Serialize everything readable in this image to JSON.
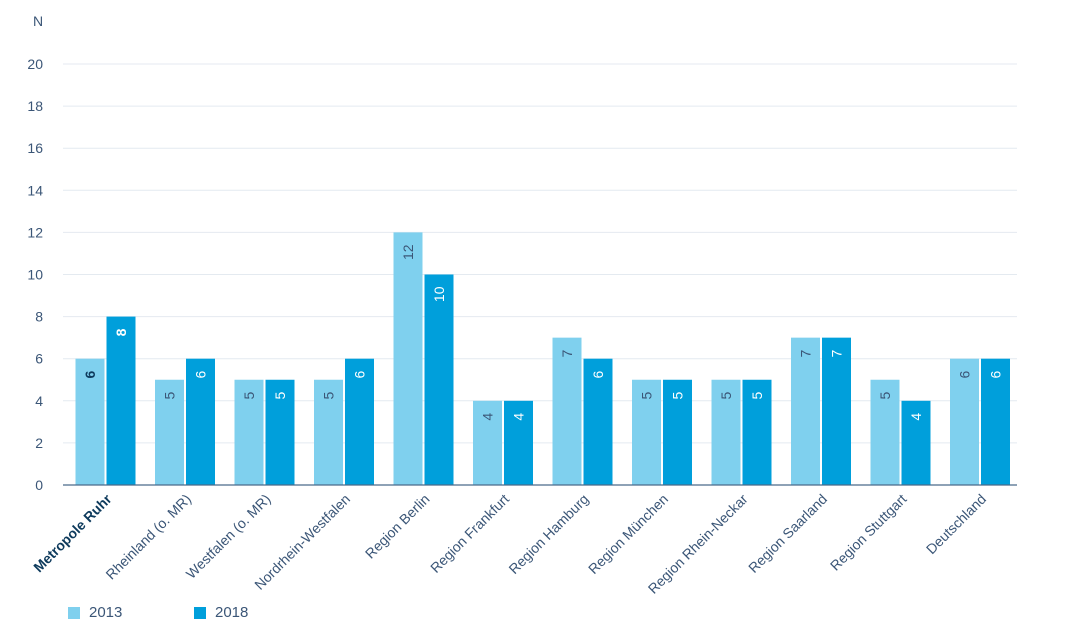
{
  "chart_data": {
    "type": "bar",
    "ylabel": "N",
    "ylim": [
      0,
      20
    ],
    "yticks": [
      "0",
      "2",
      "4",
      "6",
      "8",
      "10",
      "12",
      "14",
      "16",
      "18",
      "20"
    ],
    "grid": true,
    "legend_position": "bottom-left",
    "highlight_category": "Metropole Ruhr",
    "categories": [
      "Metropole Ruhr",
      "Rheinland (o. MR)",
      "Westfalen (o. MR)",
      "Nordrhein-Westfalen",
      "Region Berlin",
      "Region Frankfurt",
      "Region Hamburg",
      "Region München",
      "Region Rhein-Neckar",
      "Region Saarland",
      "Region Stuttgart",
      "Deutschland"
    ],
    "series": [
      {
        "name": "2013",
        "color": "#7fd0ee",
        "values": [
          6,
          5,
          5,
          5,
          12,
          4,
          7,
          5,
          5,
          7,
          5,
          6
        ]
      },
      {
        "name": "2018",
        "color": "#009fdb",
        "values": [
          8,
          6,
          5,
          6,
          10,
          4,
          6,
          5,
          5,
          7,
          4,
          6
        ]
      }
    ]
  }
}
